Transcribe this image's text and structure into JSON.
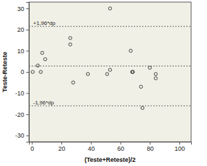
{
  "chart_data": {
    "type": "scatter",
    "x_label": "(Teste+Reteste)/2",
    "y_label": "Teste-Reteste",
    "x": [
      0.5,
      4,
      6,
      7,
      9,
      26,
      26,
      28,
      38,
      51,
      53,
      53,
      67,
      68,
      68.5,
      74,
      75,
      80,
      84,
      84
    ],
    "values": [
      0,
      3,
      0,
      9,
      6,
      16,
      13,
      -5,
      -1,
      -1,
      30,
      1,
      10,
      0,
      0,
      -7,
      -17,
      2,
      -1,
      -3
    ],
    "color": "#333333",
    "xlim": [
      -2,
      108
    ],
    "xticks": [
      0,
      20,
      40,
      60,
      80,
      100
    ],
    "ylim": [
      -33,
      33
    ],
    "yticks": [
      -30,
      -20,
      -10,
      0,
      10,
      20,
      30
    ],
    "reference_lines": [
      {
        "value": 21.5,
        "label": "+1,96*dp"
      },
      {
        "value": 2.8
      },
      {
        "value": -16,
        "label": "-1,96*dp"
      }
    ]
  }
}
